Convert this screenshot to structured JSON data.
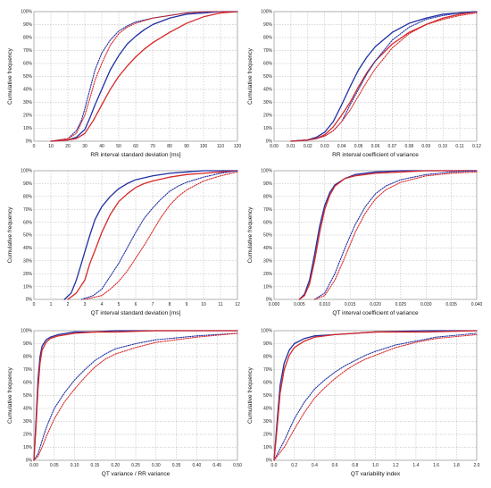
{
  "chart_data": [
    {
      "type": "line",
      "xlabel": "RR interval standard deviation [ms]",
      "ylabel": "Cumulative frequency",
      "xlim": [
        0,
        120
      ],
      "ylim": [
        0,
        100
      ],
      "xticks": [
        "0",
        "10",
        "20",
        "30",
        "40",
        "50",
        "60",
        "70",
        "80",
        "90",
        "100",
        "110",
        "120"
      ],
      "yticks": [
        "0%",
        "10%",
        "20%",
        "30%",
        "40%",
        "50%",
        "60%",
        "70%",
        "80%",
        "90%",
        "100%"
      ],
      "grid": true,
      "series": [
        {
          "color": "#1f2fa3",
          "style": "solid",
          "x": [
            10,
            20,
            25,
            30,
            33,
            36,
            40,
            45,
            50,
            55,
            60,
            65,
            70,
            80,
            90,
            100,
            110,
            120
          ],
          "y": [
            0,
            1,
            3,
            9,
            18,
            28,
            40,
            55,
            66,
            75,
            81,
            86,
            90,
            95,
            98,
            99,
            100,
            100
          ]
        },
        {
          "color": "#d62728",
          "style": "solid",
          "x": [
            10,
            20,
            25,
            30,
            35,
            40,
            45,
            50,
            55,
            60,
            65,
            70,
            80,
            90,
            100,
            110,
            120
          ],
          "y": [
            0,
            1,
            2,
            6,
            16,
            28,
            40,
            50,
            58,
            65,
            71,
            76,
            84,
            91,
            96,
            99,
            100
          ]
        },
        {
          "color": "#1f2fa3",
          "style": "dotted",
          "x": [
            10,
            20,
            25,
            28,
            30,
            33,
            36,
            40,
            45,
            50,
            55,
            60,
            70,
            80,
            90,
            100,
            110,
            120
          ],
          "y": [
            0,
            2,
            8,
            16,
            25,
            40,
            55,
            68,
            78,
            85,
            89,
            92,
            95,
            97,
            99,
            100,
            100,
            100
          ]
        },
        {
          "color": "#d62728",
          "style": "dotted",
          "x": [
            10,
            20,
            25,
            30,
            33,
            36,
            40,
            45,
            50,
            55,
            60,
            65,
            70,
            80,
            90,
            100,
            110,
            120
          ],
          "y": [
            0,
            2,
            6,
            20,
            33,
            47,
            60,
            74,
            83,
            88,
            91,
            93,
            95,
            97,
            99,
            100,
            100,
            100
          ]
        }
      ]
    },
    {
      "type": "line",
      "xlabel": "RR interval coefficient of variance",
      "ylabel": "Cumulative frequency",
      "xlim": [
        0,
        0.12
      ],
      "ylim": [
        0,
        100
      ],
      "xticks": [
        "0.00",
        "0.01",
        "0.02",
        "0.03",
        "0.04",
        "0.05",
        "0.06",
        "0.07",
        "0.08",
        "0.09",
        "0.10",
        "0.11",
        "0.12"
      ],
      "yticks": [
        "0%",
        "10%",
        "20%",
        "30%",
        "40%",
        "50%",
        "60%",
        "70%",
        "80%",
        "90%",
        "100%"
      ],
      "grid": true,
      "series": [
        {
          "color": "#1f2fa3",
          "style": "solid",
          "x": [
            0.01,
            0.02,
            0.025,
            0.03,
            0.035,
            0.04,
            0.045,
            0.05,
            0.055,
            0.06,
            0.07,
            0.08,
            0.09,
            0.1,
            0.11,
            0.12
          ],
          "y": [
            0,
            1,
            3,
            7,
            15,
            28,
            42,
            55,
            65,
            73,
            84,
            91,
            95,
            98,
            99,
            100
          ]
        },
        {
          "color": "#d62728",
          "style": "solid",
          "x": [
            0.01,
            0.02,
            0.025,
            0.03,
            0.035,
            0.04,
            0.045,
            0.05,
            0.055,
            0.06,
            0.07,
            0.08,
            0.09,
            0.1,
            0.11,
            0.12
          ],
          "y": [
            0,
            1,
            2,
            5,
            11,
            20,
            30,
            42,
            53,
            62,
            75,
            84,
            90,
            95,
            98,
            100
          ]
        },
        {
          "color": "#1f2fa3",
          "style": "dotted",
          "x": [
            0.01,
            0.02,
            0.025,
            0.03,
            0.035,
            0.04,
            0.045,
            0.05,
            0.055,
            0.06,
            0.07,
            0.08,
            0.09,
            0.1,
            0.11,
            0.12
          ],
          "y": [
            0,
            1,
            2,
            4,
            8,
            15,
            28,
            40,
            52,
            62,
            78,
            88,
            94,
            97,
            99,
            100
          ]
        },
        {
          "color": "#d62728",
          "style": "dotted",
          "x": [
            0.01,
            0.02,
            0.025,
            0.03,
            0.035,
            0.04,
            0.045,
            0.05,
            0.055,
            0.06,
            0.07,
            0.08,
            0.09,
            0.1,
            0.11,
            0.12
          ],
          "y": [
            0,
            1,
            2,
            4,
            8,
            15,
            24,
            35,
            46,
            56,
            72,
            83,
            90,
            94,
            97,
            99
          ]
        }
      ]
    },
    {
      "type": "line",
      "xlabel": "QT interval standard deviation [ms]",
      "ylabel": "Cumulative frequency",
      "xlim": [
        0,
        12
      ],
      "ylim": [
        0,
        100
      ],
      "xticks": [
        "0",
        "1",
        "2",
        "3",
        "4",
        "5",
        "6",
        "7",
        "8",
        "9",
        "10",
        "11",
        "12"
      ],
      "yticks": [
        "0%",
        "10%",
        "20%",
        "30%",
        "40%",
        "50%",
        "60%",
        "70%",
        "80%",
        "90%",
        "100%"
      ],
      "grid": true,
      "series": [
        {
          "color": "#1f2fa3",
          "style": "solid",
          "x": [
            1.8,
            2.2,
            2.5,
            2.8,
            3.0,
            3.3,
            3.6,
            4.0,
            4.5,
            5.0,
            5.5,
            6.0,
            7.0,
            8.0,
            9.0,
            10.0,
            11.0,
            12.0
          ],
          "y": [
            0,
            5,
            15,
            28,
            37,
            50,
            62,
            72,
            80,
            86,
            90,
            93,
            96,
            98,
            99,
            100,
            100,
            100
          ]
        },
        {
          "color": "#d62728",
          "style": "solid",
          "x": [
            2.0,
            2.5,
            3.0,
            3.3,
            3.6,
            4.0,
            4.5,
            5.0,
            5.5,
            6.0,
            6.5,
            7.0,
            8.0,
            9.0,
            10.0,
            11.0,
            12.0
          ],
          "y": [
            0,
            5,
            15,
            28,
            38,
            52,
            66,
            76,
            82,
            87,
            90,
            92,
            95,
            97,
            98,
            99,
            100
          ]
        },
        {
          "color": "#1f2fa3",
          "style": "dotted",
          "x": [
            2.8,
            3.5,
            4.0,
            4.5,
            5.0,
            5.5,
            6.0,
            6.5,
            7.0,
            7.5,
            8.0,
            8.5,
            9.0,
            10.0,
            11.0,
            12.0
          ],
          "y": [
            0,
            3,
            8,
            18,
            28,
            40,
            52,
            63,
            71,
            78,
            84,
            88,
            91,
            95,
            98,
            100
          ]
        },
        {
          "color": "#d62728",
          "style": "dotted",
          "x": [
            3.0,
            4.0,
            4.5,
            5.0,
            5.5,
            6.0,
            6.5,
            7.0,
            7.5,
            8.0,
            8.5,
            9.0,
            10.0,
            11.0,
            12.0
          ],
          "y": [
            0,
            3,
            8,
            14,
            22,
            32,
            42,
            53,
            64,
            73,
            80,
            85,
            92,
            96,
            99
          ]
        }
      ]
    },
    {
      "type": "line",
      "xlabel": "QT interval coefficient of variance",
      "ylabel": "Cumulative frequency",
      "xlim": [
        0,
        0.04
      ],
      "ylim": [
        0,
        100
      ],
      "xticks": [
        "0.000",
        "0.005",
        "0.010",
        "0.015",
        "0.020",
        "0.025",
        "0.030",
        "0.035",
        "0.040"
      ],
      "yticks": [
        "0%",
        "10%",
        "20%",
        "30%",
        "40%",
        "50%",
        "60%",
        "70%",
        "80%",
        "90%",
        "100%"
      ],
      "grid": true,
      "series": [
        {
          "color": "#1f2fa3",
          "style": "solid",
          "x": [
            0.005,
            0.006,
            0.007,
            0.008,
            0.009,
            0.01,
            0.011,
            0.012,
            0.014,
            0.016,
            0.02,
            0.025,
            0.03,
            0.04
          ],
          "y": [
            0,
            4,
            15,
            35,
            57,
            73,
            83,
            89,
            94,
            97,
            99,
            100,
            100,
            100
          ]
        },
        {
          "color": "#d62728",
          "style": "solid",
          "x": [
            0.005,
            0.006,
            0.007,
            0.008,
            0.009,
            0.01,
            0.011,
            0.012,
            0.014,
            0.016,
            0.02,
            0.025,
            0.03,
            0.04
          ],
          "y": [
            0,
            3,
            12,
            30,
            52,
            70,
            81,
            88,
            94,
            96,
            98,
            99,
            100,
            100
          ]
        },
        {
          "color": "#1f2fa3",
          "style": "dotted",
          "x": [
            0.008,
            0.01,
            0.012,
            0.014,
            0.016,
            0.018,
            0.02,
            0.022,
            0.025,
            0.03,
            0.035,
            0.04
          ],
          "y": [
            0,
            5,
            20,
            40,
            58,
            72,
            82,
            88,
            93,
            97,
            99,
            100
          ]
        },
        {
          "color": "#d62728",
          "style": "dotted",
          "x": [
            0.008,
            0.01,
            0.012,
            0.014,
            0.016,
            0.018,
            0.02,
            0.022,
            0.025,
            0.03,
            0.035,
            0.04
          ],
          "y": [
            0,
            3,
            15,
            33,
            52,
            67,
            78,
            85,
            91,
            96,
            98,
            99
          ]
        }
      ]
    },
    {
      "type": "line",
      "xlabel": "QT variance / RR variance",
      "ylabel": "Cumulative frequency",
      "xlim": [
        0,
        0.5
      ],
      "ylim": [
        0,
        100
      ],
      "xticks": [
        "0.00",
        "0.05",
        "0.10",
        "0.15",
        "0.20",
        "0.25",
        "0.30",
        "0.35",
        "0.40",
        "0.45",
        "0.50"
      ],
      "yticks": [
        "0%",
        "10%",
        "20%",
        "30%",
        "40%",
        "50%",
        "60%",
        "70%",
        "80%",
        "90%",
        "100%"
      ],
      "grid": true,
      "series": [
        {
          "color": "#1f2fa3",
          "style": "solid",
          "x": [
            0.0,
            0.005,
            0.01,
            0.015,
            0.02,
            0.03,
            0.04,
            0.06,
            0.08,
            0.1,
            0.15,
            0.2,
            0.3,
            0.5
          ],
          "y": [
            0,
            30,
            62,
            80,
            88,
            93,
            95,
            97,
            98,
            99,
            99,
            100,
            100,
            100
          ]
        },
        {
          "color": "#d62728",
          "style": "solid",
          "x": [
            0.0,
            0.005,
            0.01,
            0.015,
            0.02,
            0.03,
            0.04,
            0.06,
            0.08,
            0.1,
            0.15,
            0.2,
            0.3,
            0.5
          ],
          "y": [
            0,
            25,
            55,
            75,
            85,
            91,
            94,
            96,
            97,
            98,
            99,
            99,
            100,
            100
          ]
        },
        {
          "color": "#1f2fa3",
          "style": "dotted",
          "x": [
            0.0,
            0.01,
            0.02,
            0.03,
            0.05,
            0.075,
            0.1,
            0.125,
            0.15,
            0.175,
            0.2,
            0.25,
            0.3,
            0.4,
            0.5
          ],
          "y": [
            0,
            5,
            15,
            25,
            40,
            52,
            62,
            70,
            77,
            82,
            86,
            90,
            93,
            96,
            98
          ]
        },
        {
          "color": "#d62728",
          "style": "dotted",
          "x": [
            0.0,
            0.01,
            0.02,
            0.03,
            0.05,
            0.075,
            0.1,
            0.125,
            0.15,
            0.175,
            0.2,
            0.25,
            0.3,
            0.4,
            0.5
          ],
          "y": [
            0,
            3,
            10,
            18,
            32,
            45,
            55,
            64,
            72,
            78,
            82,
            87,
            91,
            95,
            98
          ]
        }
      ]
    },
    {
      "type": "line",
      "xlabel": "QT variability index",
      "ylabel": "Cumulative frequency",
      "xlim": [
        0,
        2
      ],
      "ylim": [
        0,
        100
      ],
      "xticks": [
        "0.0",
        "0.2",
        "0.4",
        "0.6",
        "0.8",
        "1.0",
        "1.2",
        "1.4",
        "1.6",
        "1.8",
        "2.0"
      ],
      "yticks": [
        "0%",
        "10%",
        "20%",
        "30%",
        "40%",
        "50%",
        "60%",
        "70%",
        "80%",
        "90%",
        "100%"
      ],
      "grid": true,
      "series": [
        {
          "color": "#1f2fa3",
          "style": "solid",
          "x": [
            0.0,
            0.03,
            0.06,
            0.1,
            0.15,
            0.2,
            0.3,
            0.4,
            0.6,
            0.8,
            1.0,
            1.5,
            2.0
          ],
          "y": [
            0,
            30,
            58,
            75,
            85,
            90,
            94,
            96,
            97,
            98,
            99,
            100,
            100
          ]
        },
        {
          "color": "#d62728",
          "style": "solid",
          "x": [
            0.0,
            0.03,
            0.06,
            0.1,
            0.15,
            0.2,
            0.3,
            0.4,
            0.6,
            0.8,
            1.0,
            1.5,
            2.0
          ],
          "y": [
            0,
            25,
            52,
            70,
            81,
            87,
            92,
            95,
            97,
            98,
            99,
            99,
            100
          ]
        },
        {
          "color": "#1f2fa3",
          "style": "dotted",
          "x": [
            0.0,
            0.1,
            0.2,
            0.3,
            0.4,
            0.5,
            0.6,
            0.7,
            0.8,
            0.9,
            1.0,
            1.2,
            1.4,
            1.6,
            2.0
          ],
          "y": [
            0,
            15,
            32,
            45,
            55,
            62,
            68,
            73,
            77,
            81,
            84,
            89,
            92,
            95,
            98
          ]
        },
        {
          "color": "#d62728",
          "style": "dotted",
          "x": [
            0.0,
            0.1,
            0.2,
            0.3,
            0.4,
            0.5,
            0.6,
            0.7,
            0.8,
            0.9,
            1.0,
            1.2,
            1.4,
            1.6,
            2.0
          ],
          "y": [
            0,
            10,
            24,
            37,
            48,
            56,
            63,
            69,
            74,
            78,
            81,
            87,
            91,
            94,
            97
          ]
        }
      ]
    }
  ]
}
